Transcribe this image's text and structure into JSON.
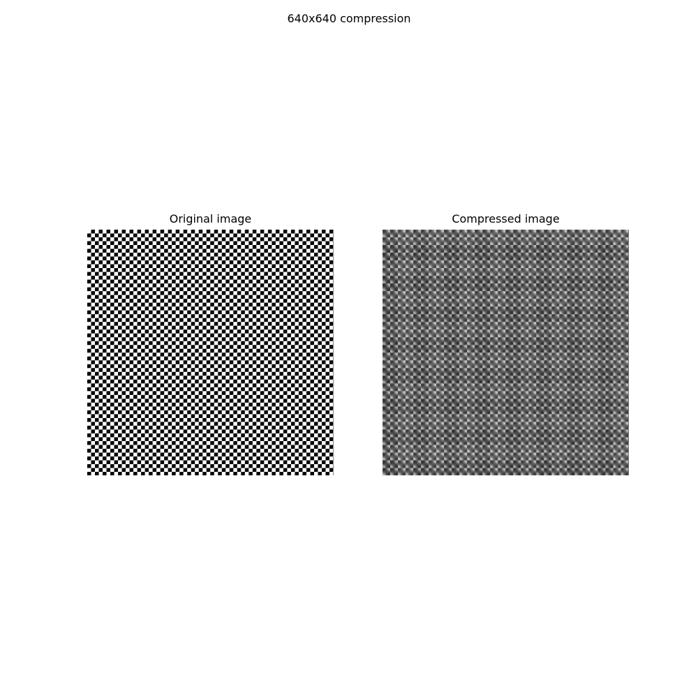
{
  "figure": {
    "title": "640x640 compression"
  },
  "panels": {
    "original": {
      "title": "Original image"
    },
    "compressed": {
      "title": "Compressed image"
    }
  }
}
